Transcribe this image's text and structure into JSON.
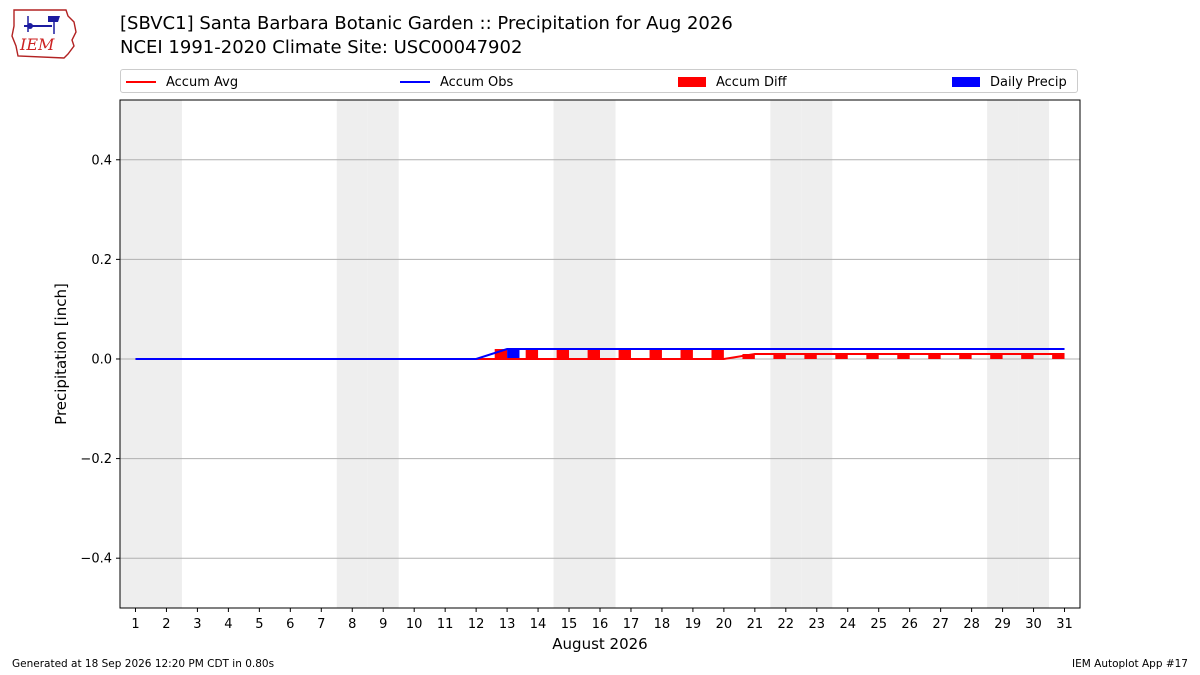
{
  "logo": {
    "text": "IEM"
  },
  "header": {
    "title_line1": "[SBVC1] Santa Barbara Botanic Garden :: Precipitation for Aug 2026",
    "title_line2": "NCEI 1991-2020 Climate Site: USC00047902"
  },
  "legend": {
    "accum_avg": "Accum Avg",
    "accum_obs": "Accum Obs",
    "accum_diff": "Accum Diff",
    "daily_precip": "Daily Precip"
  },
  "colors": {
    "accum_avg": "#ff0000",
    "accum_obs": "#0000ff",
    "accum_diff": "#ff0000",
    "daily_precip": "#0000ff",
    "weekend_shade": "#eeeeee",
    "grid": "#b0b0b0"
  },
  "footer": {
    "generated": "Generated at 18 Sep 2026 12:20 PM CDT in 0.80s",
    "app": "IEM Autoplot App #17"
  },
  "chart_data": {
    "type": "bar",
    "ylabel": "Precipitation [inch]",
    "xlabel": "August 2026",
    "ylim": [
      -0.5,
      0.52
    ],
    "xlim": [
      0.5,
      31.5
    ],
    "yticks": [
      0.4,
      0.2,
      0.0,
      -0.2,
      -0.4
    ],
    "ytick_labels": [
      "0.4",
      "0.2",
      "0.0",
      "−0.2",
      "−0.4"
    ],
    "grid": "horizontal",
    "days": [
      1,
      2,
      3,
      4,
      5,
      6,
      7,
      8,
      9,
      10,
      11,
      12,
      13,
      14,
      15,
      16,
      17,
      18,
      19,
      20,
      21,
      22,
      23,
      24,
      25,
      26,
      27,
      28,
      29,
      30,
      31
    ],
    "weekend_days": [
      1,
      2,
      8,
      9,
      15,
      16,
      22,
      23,
      29,
      30
    ],
    "accum_avg": [
      0,
      0,
      0,
      0,
      0,
      0,
      0,
      0,
      0,
      0,
      0,
      0,
      0,
      0,
      0,
      0,
      0,
      0,
      0,
      0,
      0.01,
      0.01,
      0.01,
      0.01,
      0.01,
      0.01,
      0.01,
      0.01,
      0.01,
      0.01,
      0.01
    ],
    "accum_obs": [
      0,
      0,
      0,
      0,
      0,
      0,
      0,
      0,
      0,
      0,
      0,
      0,
      0.02,
      0.02,
      0.02,
      0.02,
      0.02,
      0.02,
      0.02,
      0.02,
      0.02,
      0.02,
      0.02,
      0.02,
      0.02,
      0.02,
      0.02,
      0.02,
      0.02,
      0.02,
      0.02
    ],
    "accum_diff": [
      0,
      0,
      0,
      0,
      0,
      0,
      0,
      0,
      0,
      0,
      0,
      0,
      0.02,
      0.02,
      0.02,
      0.02,
      0.02,
      0.02,
      0.02,
      0.02,
      0.01,
      0.01,
      0.01,
      0.01,
      0.01,
      0.01,
      0.01,
      0.01,
      0.01,
      0.01,
      0.01
    ],
    "daily_precip": [
      0,
      0,
      0,
      0,
      0,
      0,
      0,
      0,
      0,
      0,
      0,
      0,
      0.02,
      0,
      0,
      0,
      0,
      0,
      0,
      0,
      0,
      0,
      0,
      0,
      0,
      0,
      0,
      0,
      0,
      0,
      0
    ]
  }
}
